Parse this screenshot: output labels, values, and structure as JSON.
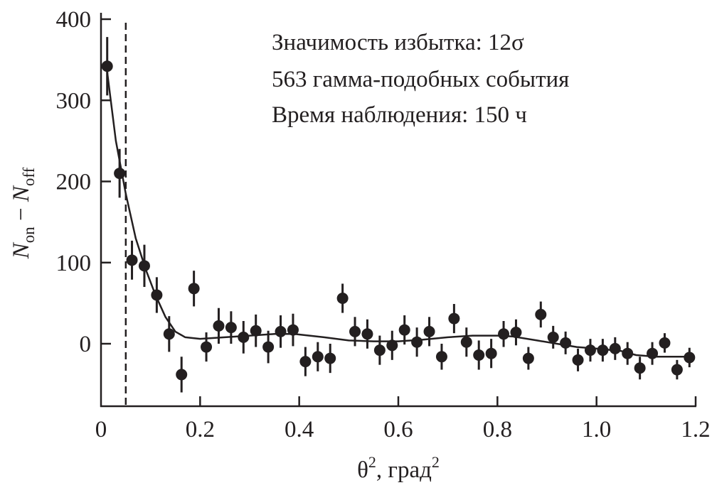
{
  "chart_data": {
    "type": "scatter",
    "title": "",
    "xlabel": "θ², град²",
    "ylabel": "N_on − N_off",
    "ylabel_parts": {
      "N1": "N",
      "sub1": "on",
      "minus": " − ",
      "N2": "N",
      "sub2": "off"
    },
    "xlabel_parts": {
      "theta": "θ",
      "sup1": "2",
      "unit": ", град",
      "sup2": "2"
    },
    "xlim": [
      0,
      1.2
    ],
    "ylim": [
      -77,
      400
    ],
    "xticks": [
      "0",
      "0.2",
      "0.4",
      "0.6",
      "0.8",
      "1.0",
      "1.2"
    ],
    "xtick_values": [
      0,
      0.2,
      0.4,
      0.6,
      0.8,
      1.0,
      1.2
    ],
    "yticks": [
      "0",
      "100",
      "200",
      "300",
      "400"
    ],
    "ytick_values": [
      0,
      100,
      200,
      300,
      400
    ],
    "grid": false,
    "annotations": [
      "Значимость избытка: 12σ",
      "563 гамма-подобных события",
      "Время наблюдения: 150 ч"
    ],
    "cut_line_x": 0.05,
    "series": [
      {
        "name": "data",
        "x": [
          0.0125,
          0.0375,
          0.0625,
          0.0875,
          0.1125,
          0.1375,
          0.1625,
          0.1875,
          0.2125,
          0.2375,
          0.2625,
          0.2875,
          0.3125,
          0.3375,
          0.3625,
          0.3875,
          0.4125,
          0.4375,
          0.4625,
          0.4875,
          0.5125,
          0.5375,
          0.5625,
          0.5875,
          0.6125,
          0.6375,
          0.6625,
          0.6875,
          0.7125,
          0.7375,
          0.7625,
          0.7875,
          0.8125,
          0.8375,
          0.8625,
          0.8875,
          0.9125,
          0.9375,
          0.9625,
          0.9875,
          1.0125,
          1.0375,
          1.0625,
          1.0875,
          1.1125,
          1.1375,
          1.1625,
          1.1875
        ],
        "y": [
          342,
          210,
          103,
          96,
          60,
          12,
          -38,
          68,
          -4,
          22,
          20,
          8,
          16,
          -4,
          15,
          17,
          -22,
          -16,
          -18,
          56,
          15,
          12,
          -8,
          -2,
          17,
          2,
          15,
          -16,
          31,
          2,
          -14,
          -12,
          12,
          14,
          -18,
          36,
          8,
          1,
          -20,
          -8,
          -8,
          -6,
          -12,
          -30,
          -12,
          1,
          -32,
          -17
        ],
        "yerr": [
          36,
          30,
          24,
          26,
          22,
          22,
          22,
          22,
          18,
          22,
          20,
          20,
          20,
          20,
          20,
          20,
          18,
          18,
          18,
          18,
          18,
          18,
          18,
          18,
          18,
          18,
          18,
          16,
          18,
          18,
          18,
          18,
          16,
          16,
          14,
          16,
          14,
          14,
          14,
          14,
          14,
          14,
          14,
          14,
          14,
          12,
          12,
          12
        ]
      },
      {
        "name": "fit",
        "type": "line",
        "x": [
          0.0125,
          0.03,
          0.05,
          0.07,
          0.09,
          0.11,
          0.13,
          0.15,
          0.17,
          0.2,
          0.25,
          0.3,
          0.35,
          0.39,
          0.45,
          0.5,
          0.55,
          0.6,
          0.65,
          0.7,
          0.75,
          0.8,
          0.83,
          0.88,
          0.92,
          0.96,
          1.0,
          1.05,
          1.08,
          1.12,
          1.19
        ],
        "y": [
          335,
          250,
          185,
          130,
          92,
          60,
          33,
          15,
          8,
          6,
          8,
          10,
          12,
          12,
          8,
          4,
          3,
          3,
          5,
          8,
          10,
          10,
          9,
          4,
          0,
          -4,
          -6,
          -9,
          -14,
          -16,
          -16
        ]
      }
    ]
  }
}
